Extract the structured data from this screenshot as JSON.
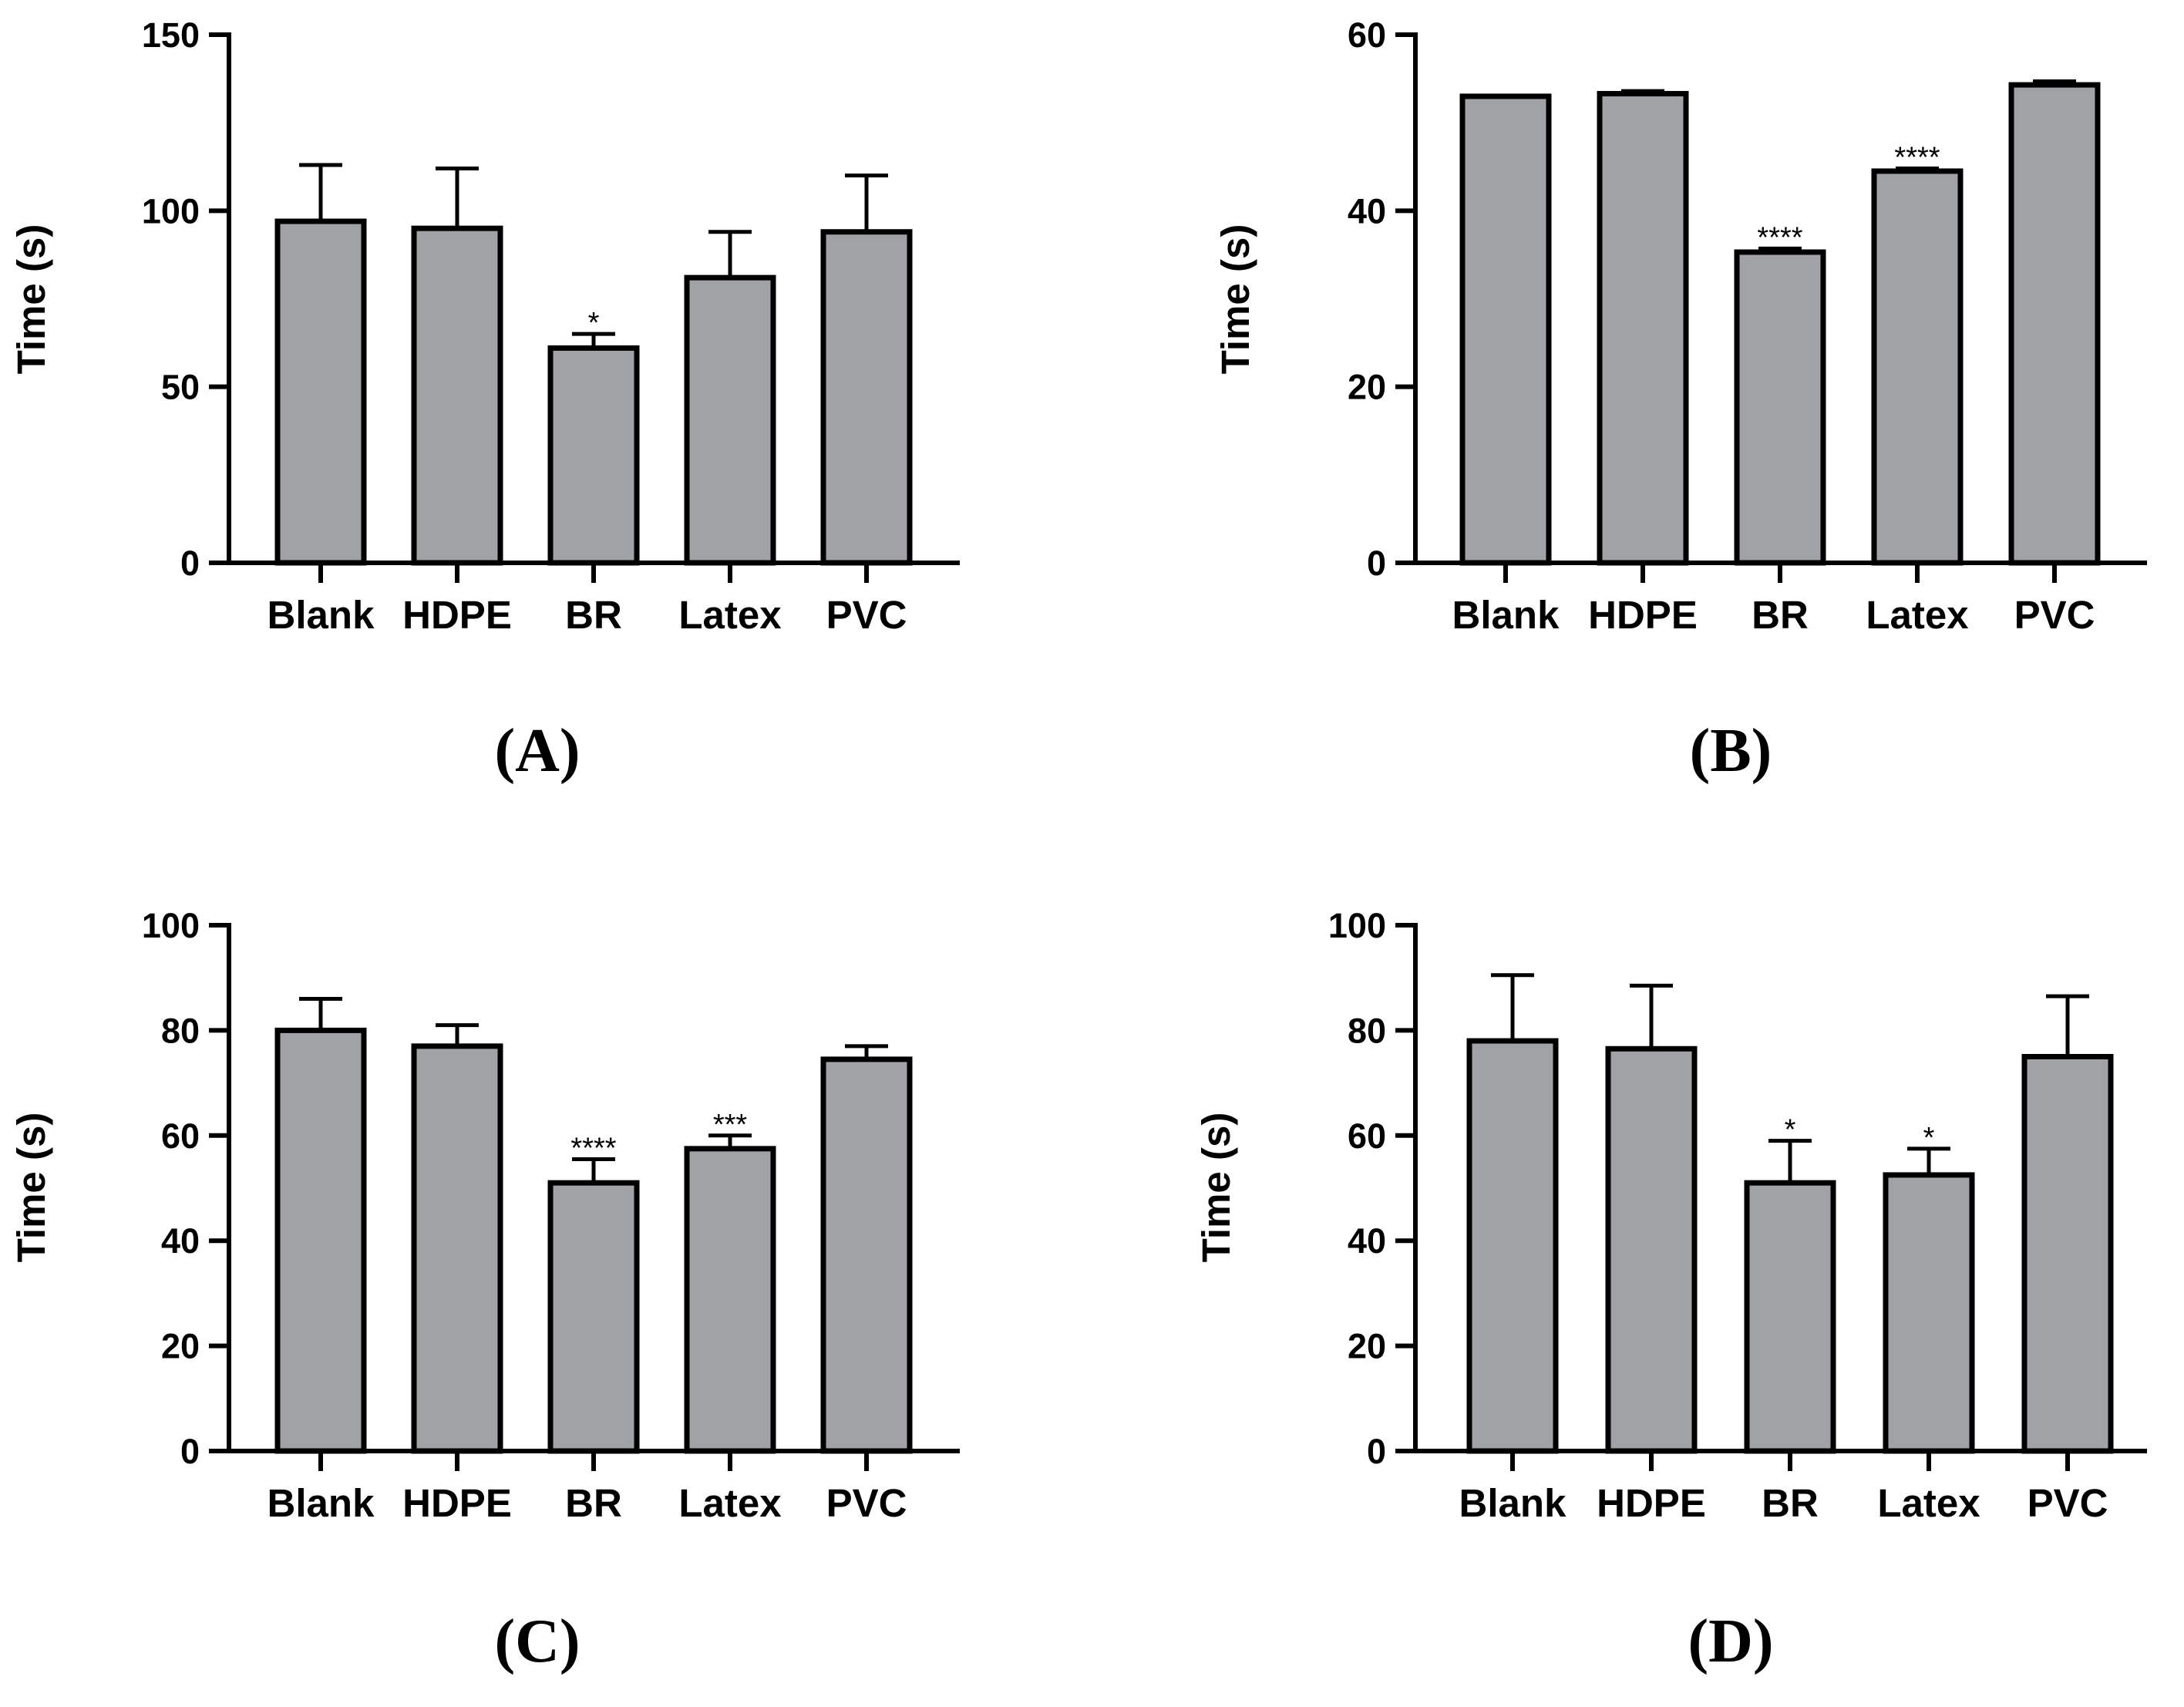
{
  "chart_data": [
    {
      "panel": "(A)",
      "type": "bar",
      "categories": [
        "Blank",
        "HDPE",
        "BR",
        "Latex",
        "PVC"
      ],
      "values": [
        97,
        95,
        61,
        81,
        94
      ],
      "errors": [
        16,
        17,
        4,
        13,
        16
      ],
      "significance": [
        "",
        "",
        "*",
        "",
        ""
      ],
      "ylabel": "Time (s)",
      "ylim": [
        0,
        150
      ],
      "yticks": [
        0,
        50,
        100,
        150
      ]
    },
    {
      "panel": "(B)",
      "type": "bar",
      "categories": [
        "Blank",
        "HDPE",
        "BR",
        "Latex",
        "PVC"
      ],
      "values": [
        53,
        53.3,
        35.3,
        44.5,
        54.3
      ],
      "errors": [
        0,
        0.3,
        0.4,
        0.3,
        0.4
      ],
      "significance": [
        "",
        "",
        "****",
        "****",
        ""
      ],
      "ylabel": "Time (s)",
      "ylim": [
        0,
        60
      ],
      "yticks": [
        0,
        20,
        40,
        60
      ]
    },
    {
      "panel": "(C)",
      "type": "bar",
      "categories": [
        "Blank",
        "HDPE",
        "BR",
        "Latex",
        "PVC"
      ],
      "values": [
        80,
        77,
        51,
        57.5,
        74.5
      ],
      "errors": [
        6,
        4,
        4.5,
        2.5,
        2.5
      ],
      "significance": [
        "",
        "",
        "****",
        "***",
        ""
      ],
      "ylabel": "Time (s)",
      "ylim": [
        0,
        100
      ],
      "yticks": [
        0,
        20,
        40,
        60,
        80,
        100
      ]
    },
    {
      "panel": "(D)",
      "type": "bar",
      "categories": [
        "Blank",
        "HDPE",
        "BR",
        "Latex",
        "PVC"
      ],
      "values": [
        78,
        76.5,
        51,
        52.5,
        75
      ],
      "errors": [
        12.5,
        12,
        8,
        5,
        11.5
      ],
      "significance": [
        "",
        "",
        "*",
        "*",
        ""
      ],
      "ylabel": "Time (s)",
      "ylim": [
        0,
        100
      ],
      "yticks": [
        0,
        20,
        40,
        60,
        80,
        100
      ]
    }
  ]
}
